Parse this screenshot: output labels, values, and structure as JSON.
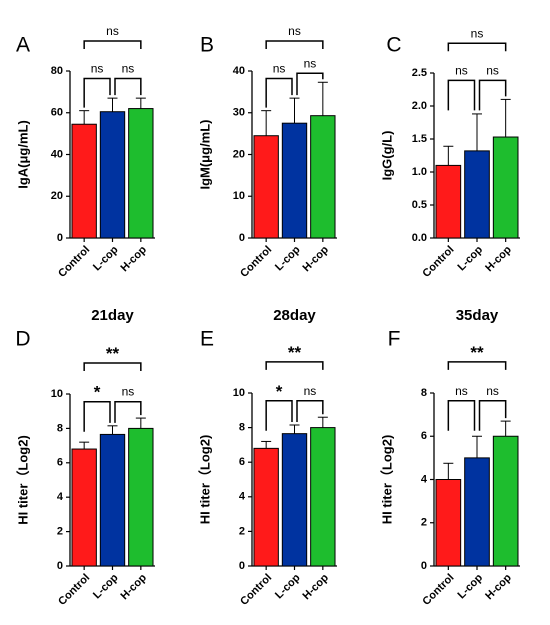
{
  "chart_data": [
    {
      "type": "bar",
      "panel": "A",
      "title": "",
      "ylabel": "IgA(μg/mL)",
      "xlabel": "",
      "categories": [
        "Control",
        "L-cop",
        "H-cop"
      ],
      "values": [
        54.5,
        60.5,
        62.0
      ],
      "errors": [
        6.5,
        6.5,
        5.0
      ],
      "ylim": [
        0,
        80
      ],
      "yticks": [
        "0",
        "20",
        "40",
        "60",
        "80"
      ],
      "colors": [
        "#ff1a1a",
        "#0033a0",
        "#1ebd2e"
      ],
      "significance": [
        {
          "from": 0,
          "to": 2,
          "label": "ns"
        },
        {
          "from": 0,
          "to": 1,
          "label": "ns"
        },
        {
          "from": 1,
          "to": 2,
          "label": "ns"
        }
      ]
    },
    {
      "type": "bar",
      "panel": "B",
      "title": "",
      "ylabel": "IgM(μg/mL)",
      "xlabel": "",
      "categories": [
        "Control",
        "L-cop",
        "H-cop"
      ],
      "values": [
        24.5,
        27.5,
        29.3
      ],
      "errors": [
        6.0,
        6.0,
        8.0
      ],
      "ylim": [
        0,
        40
      ],
      "yticks": [
        "0",
        "10",
        "20",
        "30",
        "40"
      ],
      "colors": [
        "#ff1a1a",
        "#0033a0",
        "#1ebd2e"
      ],
      "significance": [
        {
          "from": 0,
          "to": 2,
          "label": "ns"
        },
        {
          "from": 0,
          "to": 1,
          "label": "ns"
        },
        {
          "from": 1,
          "to": 2,
          "label": "ns"
        }
      ]
    },
    {
      "type": "bar",
      "panel": "C",
      "title": "",
      "ylabel": "IgG(g/L)",
      "xlabel": "",
      "categories": [
        "Control",
        "L-cop",
        "H-cop"
      ],
      "values": [
        1.1,
        1.32,
        1.53
      ],
      "errors": [
        0.29,
        0.56,
        0.57
      ],
      "ylim": [
        0,
        2.5
      ],
      "yticks": [
        "0.0",
        "0.5",
        "1.0",
        "1.5",
        "2.0",
        "2.5"
      ],
      "colors": [
        "#ff1a1a",
        "#0033a0",
        "#1ebd2e"
      ],
      "significance": [
        {
          "from": 0,
          "to": 2,
          "label": "ns"
        },
        {
          "from": 0,
          "to": 1,
          "label": "ns"
        },
        {
          "from": 1,
          "to": 2,
          "label": "ns"
        }
      ]
    },
    {
      "type": "bar",
      "panel": "D",
      "title": "21day",
      "ylabel": "HI titer（Log2)",
      "xlabel": "",
      "categories": [
        "Control",
        "L-cop",
        "H-cop"
      ],
      "values": [
        6.8,
        7.65,
        8.0
      ],
      "errors": [
        0.4,
        0.5,
        0.6
      ],
      "ylim": [
        0,
        10
      ],
      "yticks": [
        "0",
        "2",
        "4",
        "6",
        "8",
        "10"
      ],
      "colors": [
        "#ff1a1a",
        "#0033a0",
        "#1ebd2e"
      ],
      "significance": [
        {
          "from": 0,
          "to": 2,
          "label": "**"
        },
        {
          "from": 0,
          "to": 1,
          "label": "*"
        },
        {
          "from": 1,
          "to": 2,
          "label": "ns"
        }
      ]
    },
    {
      "type": "bar",
      "panel": "E",
      "title": "28day",
      "ylabel": "HI titer（Log2)",
      "xlabel": "",
      "categories": [
        "Control",
        "L-cop",
        "H-cop"
      ],
      "values": [
        6.8,
        7.65,
        8.0
      ],
      "errors": [
        0.4,
        0.5,
        0.6
      ],
      "ylim": [
        0,
        10
      ],
      "yticks": [
        "0",
        "2",
        "4",
        "6",
        "8",
        "10"
      ],
      "colors": [
        "#ff1a1a",
        "#0033a0",
        "#1ebd2e"
      ],
      "significance": [
        {
          "from": 0,
          "to": 2,
          "label": "**"
        },
        {
          "from": 0,
          "to": 1,
          "label": "*"
        },
        {
          "from": 1,
          "to": 2,
          "label": "ns"
        }
      ]
    },
    {
      "type": "bar",
      "panel": "F",
      "title": "35day",
      "ylabel": "HI titer（Log2)",
      "xlabel": "",
      "categories": [
        "Control",
        "L-cop",
        "H-cop"
      ],
      "values": [
        4.0,
        5.0,
        6.0
      ],
      "errors": [
        0.75,
        1.0,
        0.7
      ],
      "ylim": [
        0,
        8
      ],
      "yticks": [
        "0",
        "2",
        "4",
        "6",
        "8"
      ],
      "colors": [
        "#ff1a1a",
        "#0033a0",
        "#1ebd2e"
      ],
      "significance": [
        {
          "from": 0,
          "to": 2,
          "label": "**"
        },
        {
          "from": 0,
          "to": 1,
          "label": "ns"
        },
        {
          "from": 1,
          "to": 2,
          "label": "ns"
        }
      ]
    }
  ]
}
